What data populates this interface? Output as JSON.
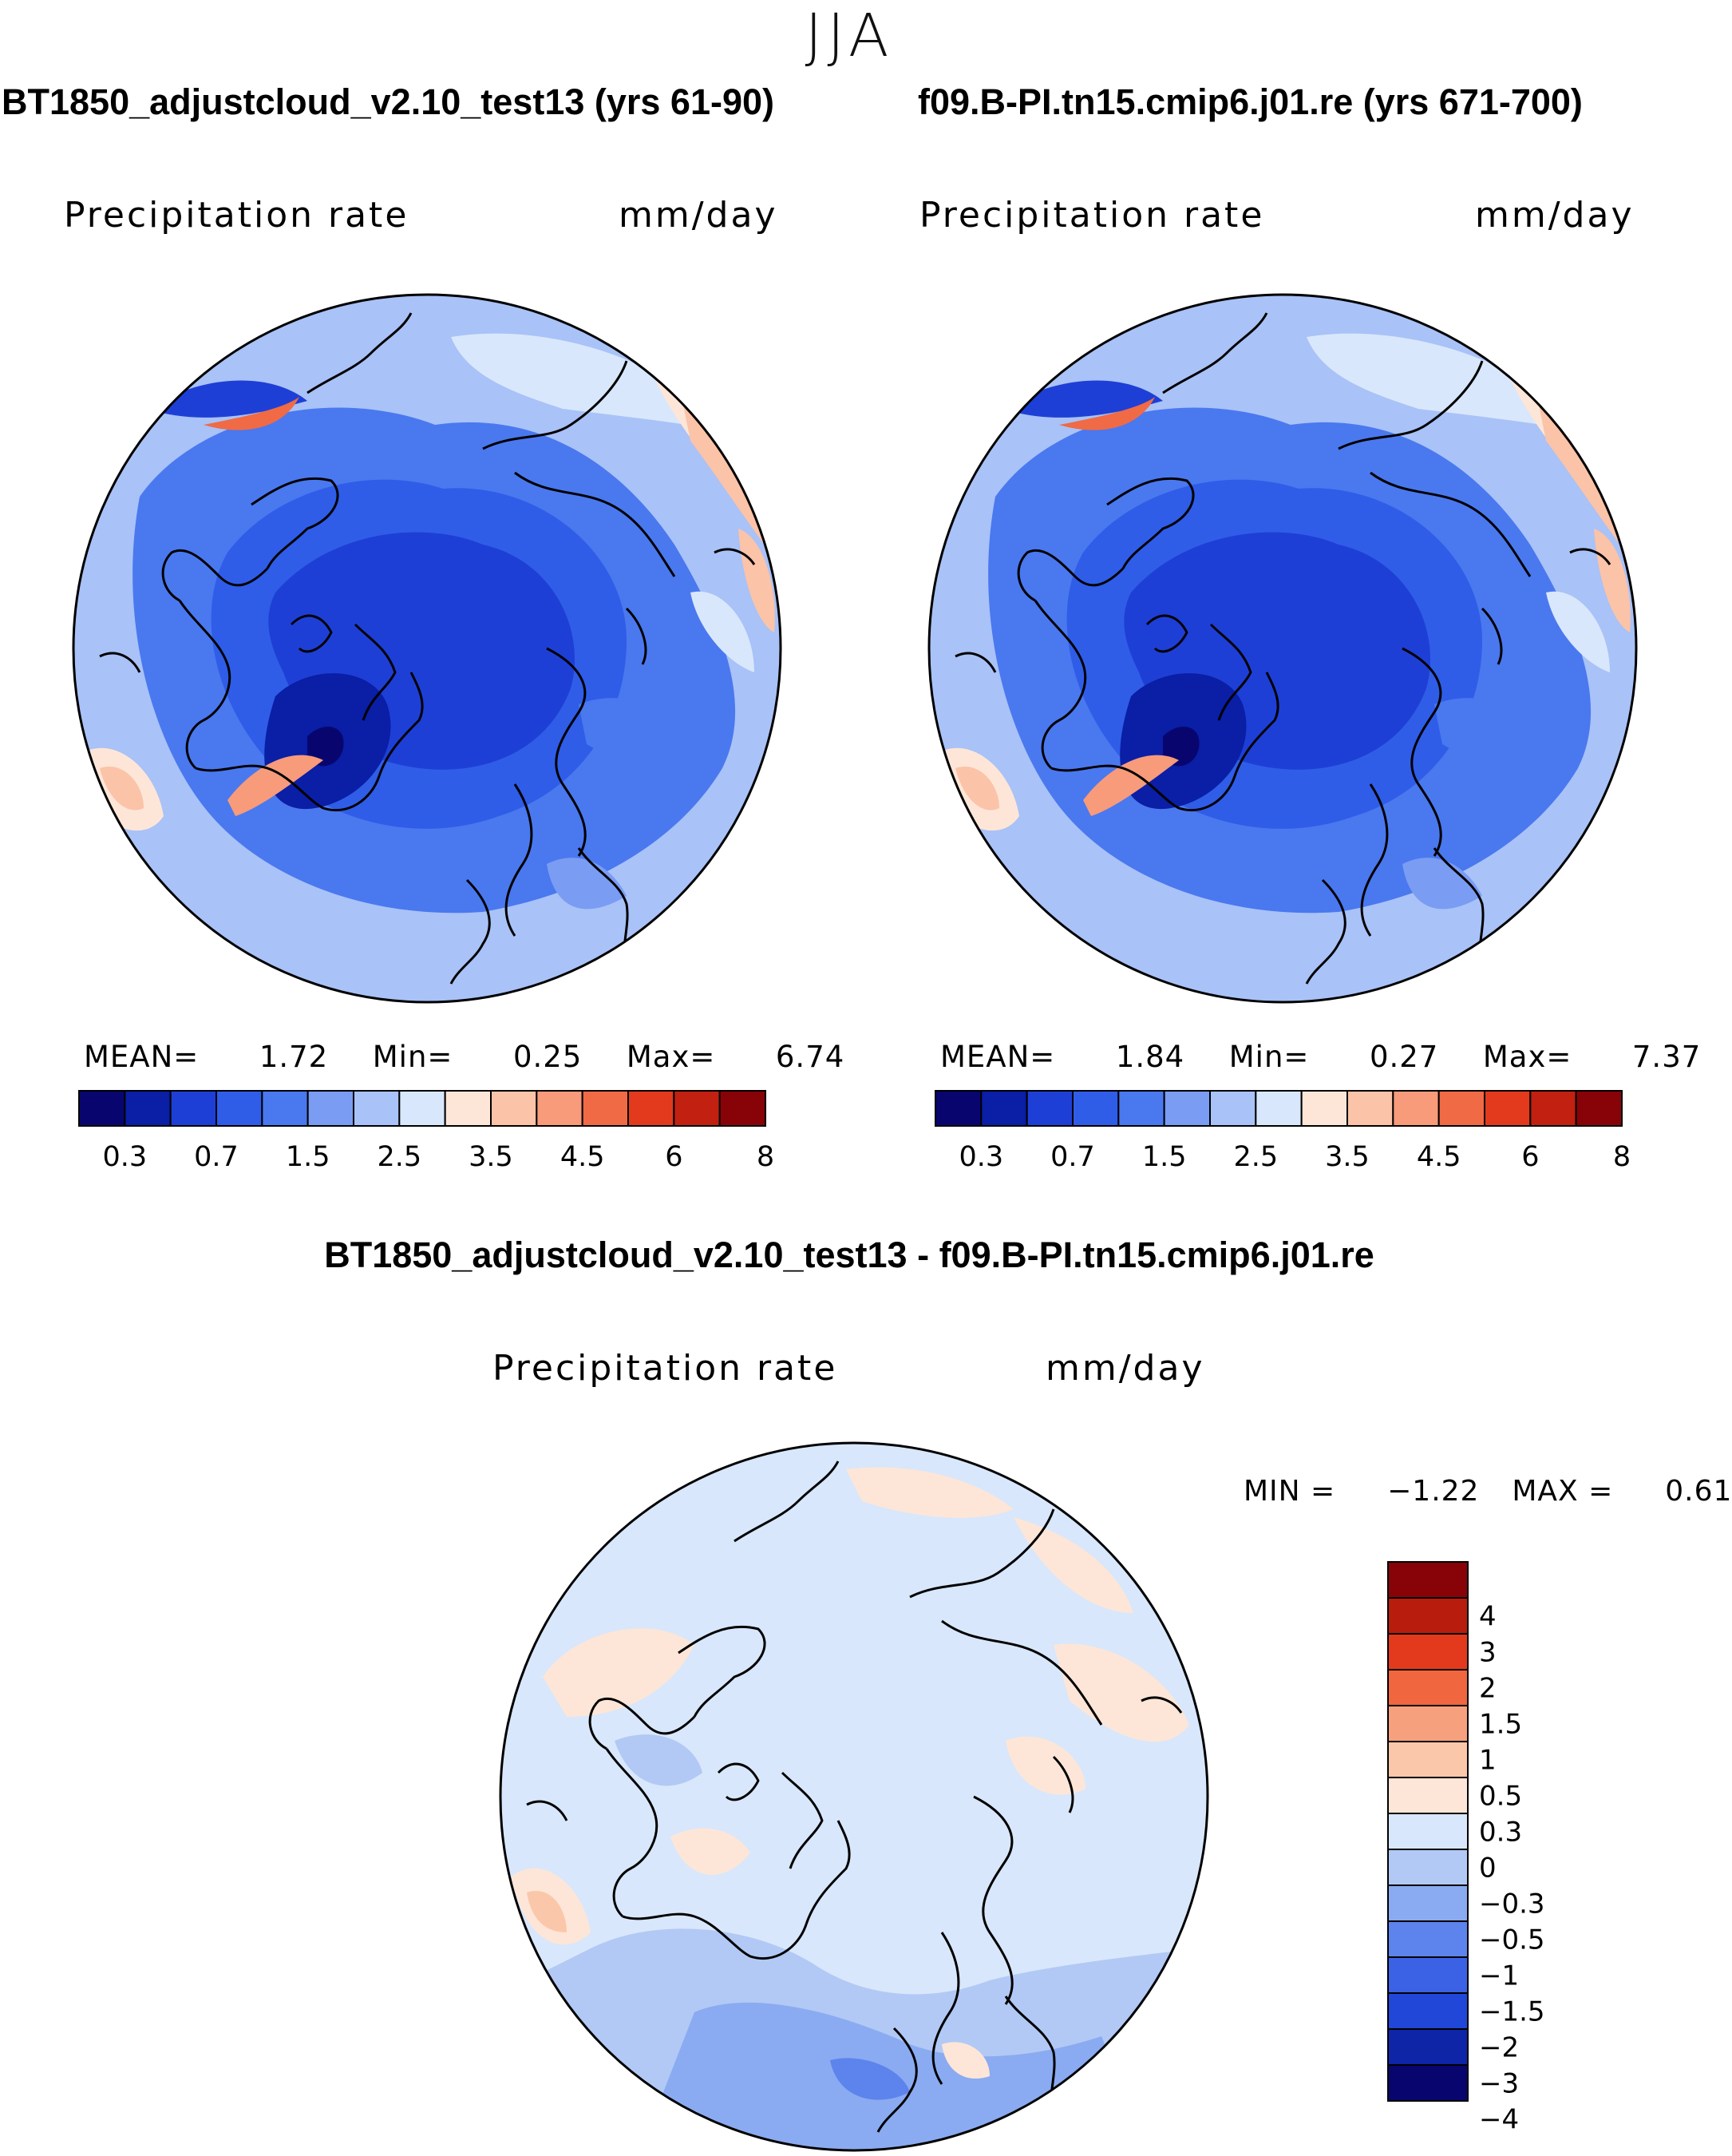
{
  "season": "JJA",
  "panels": [
    {
      "case": "BT1850_adjustcloud_v2.10_test13 (yrs 61-90)",
      "variable": "Precipitation rate",
      "units": "mm/day",
      "stats": {
        "mean_label": "MEAN=",
        "mean": "1.72",
        "min_label": "Min=",
        "min": "0.25",
        "max_label": "Max=",
        "max": "6.74"
      },
      "colorbar_labels": [
        "0.3",
        "0.7",
        "1.5",
        "2.5",
        "3.5",
        "4.5",
        "6",
        "8"
      ]
    },
    {
      "case": "f09.B-PI.tn15.cmip6.j01.re (yrs 671-700)",
      "variable": "Precipitation rate",
      "units": "mm/day",
      "stats": {
        "mean_label": "MEAN=",
        "mean": "1.84",
        "min_label": "Min=",
        "min": "0.27",
        "max_label": "Max=",
        "max": "7.37"
      },
      "colorbar_labels": [
        "0.3",
        "0.7",
        "1.5",
        "2.5",
        "3.5",
        "4.5",
        "6",
        "8"
      ]
    }
  ],
  "difference": {
    "title": "BT1850_adjustcloud_v2.10_test13 - f09.B-PI.tn15.cmip6.j01.re",
    "variable": "Precipitation rate",
    "units": "mm/day",
    "stats": {
      "min_label": "MIN =",
      "min": "−1.22",
      "max_label": "MAX =",
      "max": "0.61"
    },
    "colorbar_labels": [
      "4",
      "3",
      "2",
      "1.5",
      "1",
      "0.5",
      "0.3",
      "0",
      "−0.3",
      "−0.5",
      "−1",
      "−1.5",
      "−2",
      "−3",
      "−4"
    ]
  },
  "colors": {
    "abs_scale": [
      "#08066e",
      "#0a1ea6",
      "#1e3fd6",
      "#2f5de8",
      "#4a78ef",
      "#7a9cf3",
      "#a9c2f7",
      "#d8e7fb",
      "#fde6d8",
      "#fbc3a8",
      "#f79b7a",
      "#f06a45",
      "#e33a1e",
      "#c22010",
      "#870308"
    ],
    "diff_scale": [
      "#870308",
      "#b71c0c",
      "#e33a1e",
      "#f0663f",
      "#f7a07e",
      "#fbc7aa",
      "#fde6d8",
      "#d8e7fb",
      "#b2c9f5",
      "#8aabf1",
      "#5d84ec",
      "#3b62e5",
      "#2147d9",
      "#0e25a8",
      "#08066e"
    ],
    "land_outline": "#000000"
  }
}
